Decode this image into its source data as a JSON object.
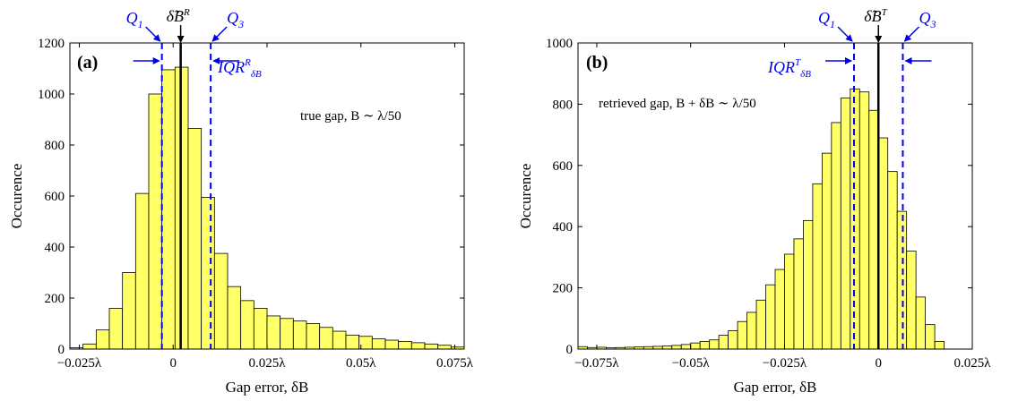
{
  "colors": {
    "bar_fill": "#ffff66",
    "bar_stroke": "#000000",
    "quartile": "#0000ee",
    "median": "#000000"
  },
  "chart_data": [
    {
      "type": "bar",
      "panel": "(a)",
      "xlabel": "Gap error, δB",
      "ylabel": "Occurence",
      "annotation": "true gap, B ∼ λ/50",
      "xlim_lambda": [
        -0.0275,
        0.0775
      ],
      "ylim": [
        0,
        1200
      ],
      "yticks": [
        0,
        200,
        400,
        600,
        800,
        1000,
        1200
      ],
      "xticks": [
        {
          "v": -0.025,
          "label": "−0.025λ"
        },
        {
          "v": 0,
          "label": "0"
        },
        {
          "v": 0.025,
          "label": "0.025λ"
        },
        {
          "v": 0.05,
          "label": "0.05λ"
        },
        {
          "v": 0.075,
          "label": "0.075λ"
        }
      ],
      "bin_start_lambda": -0.0275,
      "bin_width_lambda": 0.0035,
      "values": [
        5,
        20,
        75,
        160,
        300,
        610,
        1000,
        1095,
        1105,
        865,
        595,
        375,
        245,
        190,
        160,
        130,
        120,
        110,
        100,
        85,
        70,
        55,
        50,
        40,
        35,
        30,
        25,
        20,
        15,
        8
      ],
      "q1_lambda": -0.003,
      "median_lambda": 0.002,
      "q3_lambda": 0.01,
      "labels": {
        "q1": "Q1",
        "q3": "Q3",
        "median": "δ̃B",
        "median_sup": "R",
        "iqr": "IQR",
        "iqr_sup": "R",
        "iqr_sub": "δB"
      }
    },
    {
      "type": "bar",
      "panel": "(b)",
      "xlabel": "Gap error, δB",
      "ylabel": "Occurence",
      "annotation": "retrieved gap, B + δB ∼ λ/50",
      "xlim_lambda": [
        -0.08,
        0.025
      ],
      "ylim": [
        0,
        1000
      ],
      "yticks": [
        0,
        200,
        400,
        600,
        800,
        1000
      ],
      "xticks": [
        {
          "v": -0.075,
          "label": "−0.075λ"
        },
        {
          "v": -0.05,
          "label": "−0.05λ"
        },
        {
          "v": -0.025,
          "label": "−0.025λ"
        },
        {
          "v": 0,
          "label": "0"
        },
        {
          "v": 0.025,
          "label": "0.025λ"
        }
      ],
      "bin_start_lambda": -0.08,
      "bin_width_lambda": 0.0025,
      "values": [
        8,
        5,
        6,
        4,
        5,
        6,
        7,
        8,
        9,
        10,
        12,
        15,
        20,
        25,
        30,
        45,
        60,
        90,
        120,
        160,
        210,
        260,
        310,
        360,
        420,
        540,
        640,
        740,
        820,
        850,
        840,
        780,
        690,
        580,
        450,
        320,
        170,
        80,
        25
      ],
      "q1_lambda": -0.0065,
      "median_lambda": 0.0,
      "q3_lambda": 0.0065,
      "labels": {
        "q1": "Q1",
        "q3": "Q3",
        "median": "δ̃B",
        "median_sup": "T",
        "iqr": "IQR",
        "iqr_sup": "T",
        "iqr_sub": "δB"
      }
    }
  ]
}
